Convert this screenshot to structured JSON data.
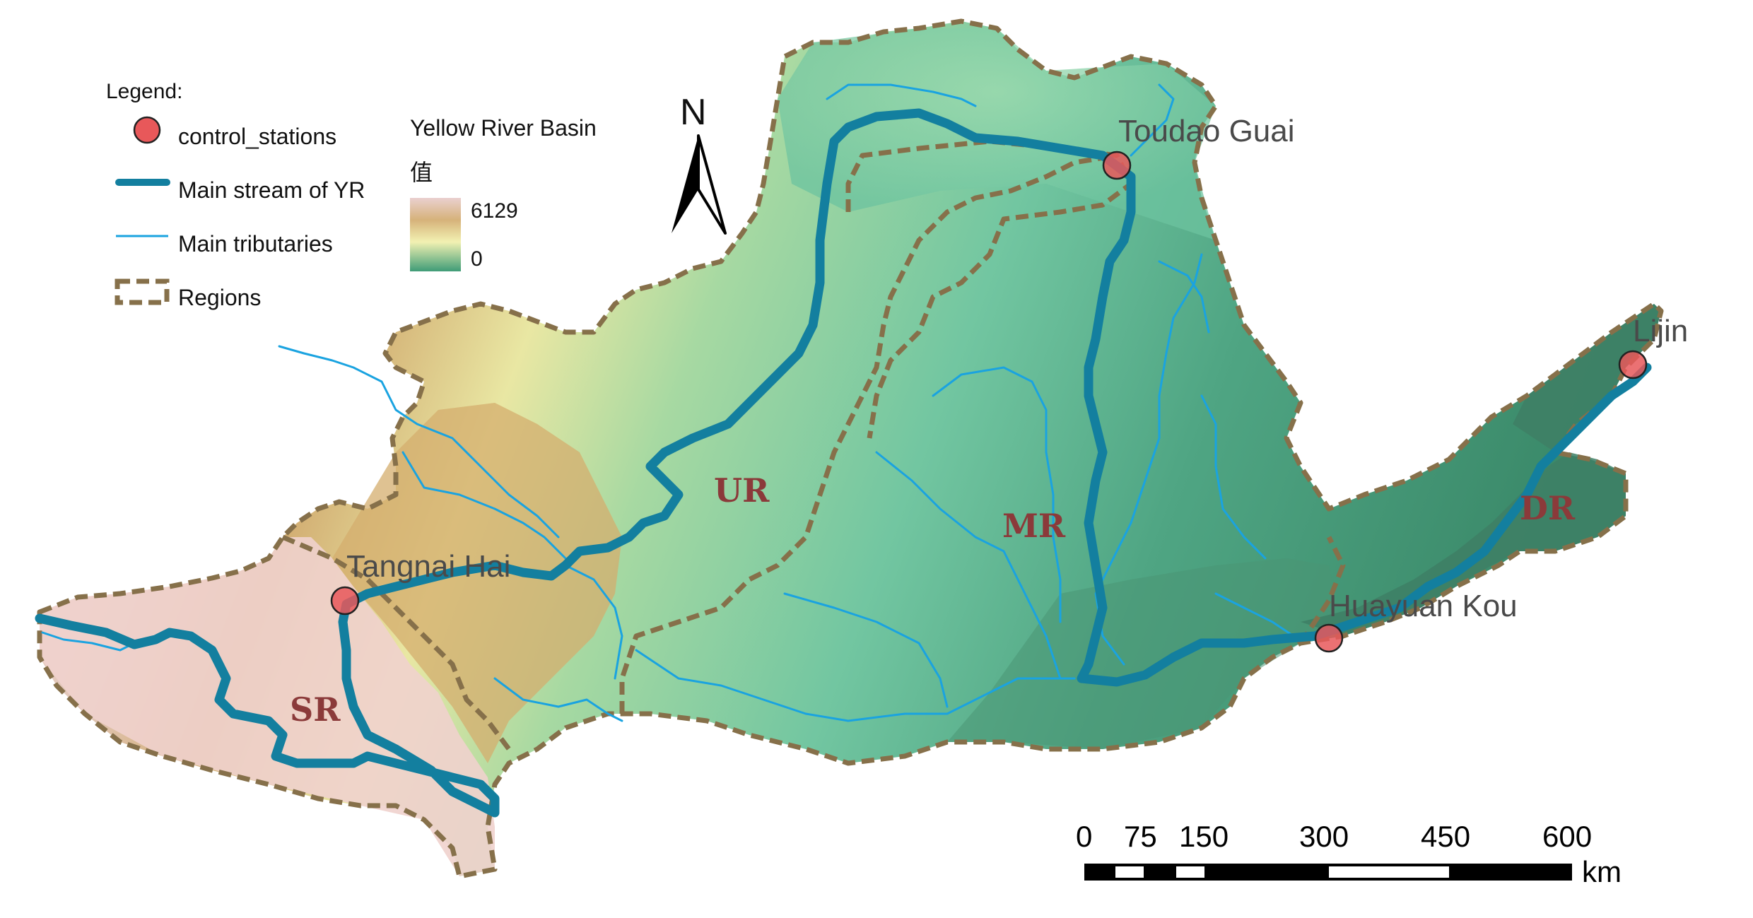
{
  "legend": {
    "title": "Legend:",
    "items": [
      {
        "symbol": "control-station-marker",
        "label": "control_stations"
      },
      {
        "symbol": "main-stream-line",
        "label": "Main stream of YR"
      },
      {
        "symbol": "tributary-line",
        "label": "Main tributaries"
      },
      {
        "symbol": "region-boundary",
        "label": "Regions"
      }
    ]
  },
  "elevation": {
    "title": "Yellow River Basin",
    "subtitle": "值",
    "max_label": "6129",
    "min_label": "0"
  },
  "north_arrow": {
    "label": "N"
  },
  "stations": [
    {
      "name": "Toudao Guai"
    },
    {
      "name": "Tangnai Hai"
    },
    {
      "name": "Huayuan Kou"
    },
    {
      "name": "Lijin"
    }
  ],
  "regions": [
    {
      "code": "SR"
    },
    {
      "code": "UR"
    },
    {
      "code": "MR"
    },
    {
      "code": "DR"
    }
  ],
  "scale_bar": {
    "ticks": [
      "0",
      "75",
      "150",
      "300",
      "450",
      "600"
    ],
    "unit": "km"
  },
  "colors": {
    "main_stream": "#137f9f",
    "tributary": "#1aa3e0",
    "region_boundary": "#86704a",
    "station_fill": "#e8585a",
    "region_label": "#8b3a3a",
    "elev_high": "#e9b7b7",
    "elev_mid": "#f3f2b5",
    "elev_low": "#3f9c77"
  }
}
